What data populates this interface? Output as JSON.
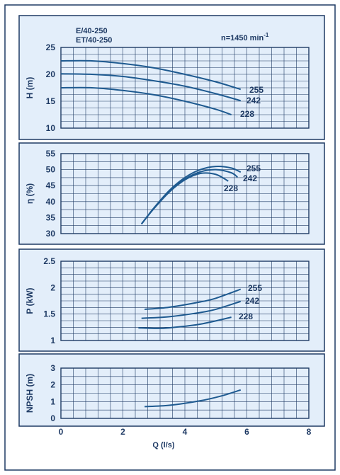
{
  "colors": {
    "background": "#e3eefa",
    "frame": "#1e3a64",
    "grid": "#1e3a64",
    "curve": "#1e5a90",
    "text": "#1e3a64"
  },
  "header": {
    "model_line_1": "E/40-250",
    "model_line_2": "ET/40-250",
    "speed": "n=1450 min",
    "speed_exponent": "-1"
  },
  "x_axis": {
    "label": "Q (l/s)",
    "range": [
      0,
      8
    ],
    "ticks": [
      0,
      2,
      4,
      6,
      8
    ],
    "minor_step": 0.4
  },
  "chart_data": [
    {
      "id": "head",
      "type": "line",
      "ylabel": "H (m)",
      "ylim": [
        10,
        25
      ],
      "yticks": [
        10,
        15,
        20,
        25
      ],
      "minor_step": 1.25,
      "series": [
        {
          "name": "255",
          "x": [
            0,
            1,
            2,
            3,
            4,
            5,
            5.8
          ],
          "y": [
            22.5,
            22.5,
            22.0,
            21.2,
            20.0,
            18.6,
            17.2
          ]
        },
        {
          "name": "242",
          "x": [
            0,
            1,
            2,
            3,
            4,
            5,
            5.8
          ],
          "y": [
            20.1,
            20.0,
            19.6,
            18.8,
            17.8,
            16.4,
            15.1
          ]
        },
        {
          "name": "228",
          "x": [
            0,
            1,
            2,
            3,
            4,
            5,
            5.5
          ],
          "y": [
            17.5,
            17.5,
            17.0,
            16.2,
            15.0,
            13.5,
            12.5
          ]
        }
      ]
    },
    {
      "id": "efficiency",
      "type": "line",
      "ylabel": "η (%)",
      "ylim": [
        30,
        55
      ],
      "yticks": [
        30,
        35,
        40,
        45,
        50,
        55
      ],
      "minor_step": 2.5,
      "series": [
        {
          "name": "255",
          "x": [
            2.6,
            3.0,
            3.5,
            4.0,
            4.5,
            5.0,
            5.5,
            5.8
          ],
          "y": [
            33.0,
            38.0,
            43.5,
            47.5,
            50.0,
            51.0,
            50.5,
            49.2
          ]
        },
        {
          "name": "242",
          "x": [
            2.6,
            3.0,
            3.5,
            4.0,
            4.5,
            5.0,
            5.5,
            5.7
          ],
          "y": [
            33.0,
            38.0,
            43.2,
            47.0,
            49.3,
            50.0,
            49.0,
            47.6
          ]
        },
        {
          "name": "228",
          "x": [
            2.6,
            3.0,
            3.5,
            4.0,
            4.5,
            5.0,
            5.4
          ],
          "y": [
            33.0,
            37.8,
            43.0,
            46.8,
            48.8,
            48.5,
            46.4
          ]
        }
      ]
    },
    {
      "id": "power",
      "type": "line",
      "ylabel": "P (kW)",
      "ylim": [
        1,
        2.5
      ],
      "yticks": [
        1,
        1.5,
        2,
        2.5
      ],
      "minor_step": 0.125,
      "series": [
        {
          "name": "255",
          "x": [
            2.7,
            3.5,
            4.5,
            5.0,
            5.8
          ],
          "y": [
            1.59,
            1.63,
            1.73,
            1.8,
            1.97
          ]
        },
        {
          "name": "242",
          "x": [
            2.6,
            3.5,
            4.5,
            5.0,
            5.8
          ],
          "y": [
            1.42,
            1.45,
            1.53,
            1.59,
            1.74
          ]
        },
        {
          "name": "228",
          "x": [
            2.5,
            3.0,
            3.5,
            4.5,
            5.5
          ],
          "y": [
            1.24,
            1.23,
            1.24,
            1.31,
            1.44
          ]
        }
      ]
    },
    {
      "id": "npsh",
      "type": "line",
      "ylabel": "NPSH (m)",
      "ylim": [
        0,
        3
      ],
      "yticks": [
        0,
        1,
        2,
        3
      ],
      "minor_step": 0.5,
      "series": [
        {
          "x": [
            2.7,
            3.5,
            4.5,
            5.2,
            5.8
          ],
          "y": [
            0.7,
            0.78,
            1.05,
            1.35,
            1.7
          ]
        }
      ]
    }
  ]
}
